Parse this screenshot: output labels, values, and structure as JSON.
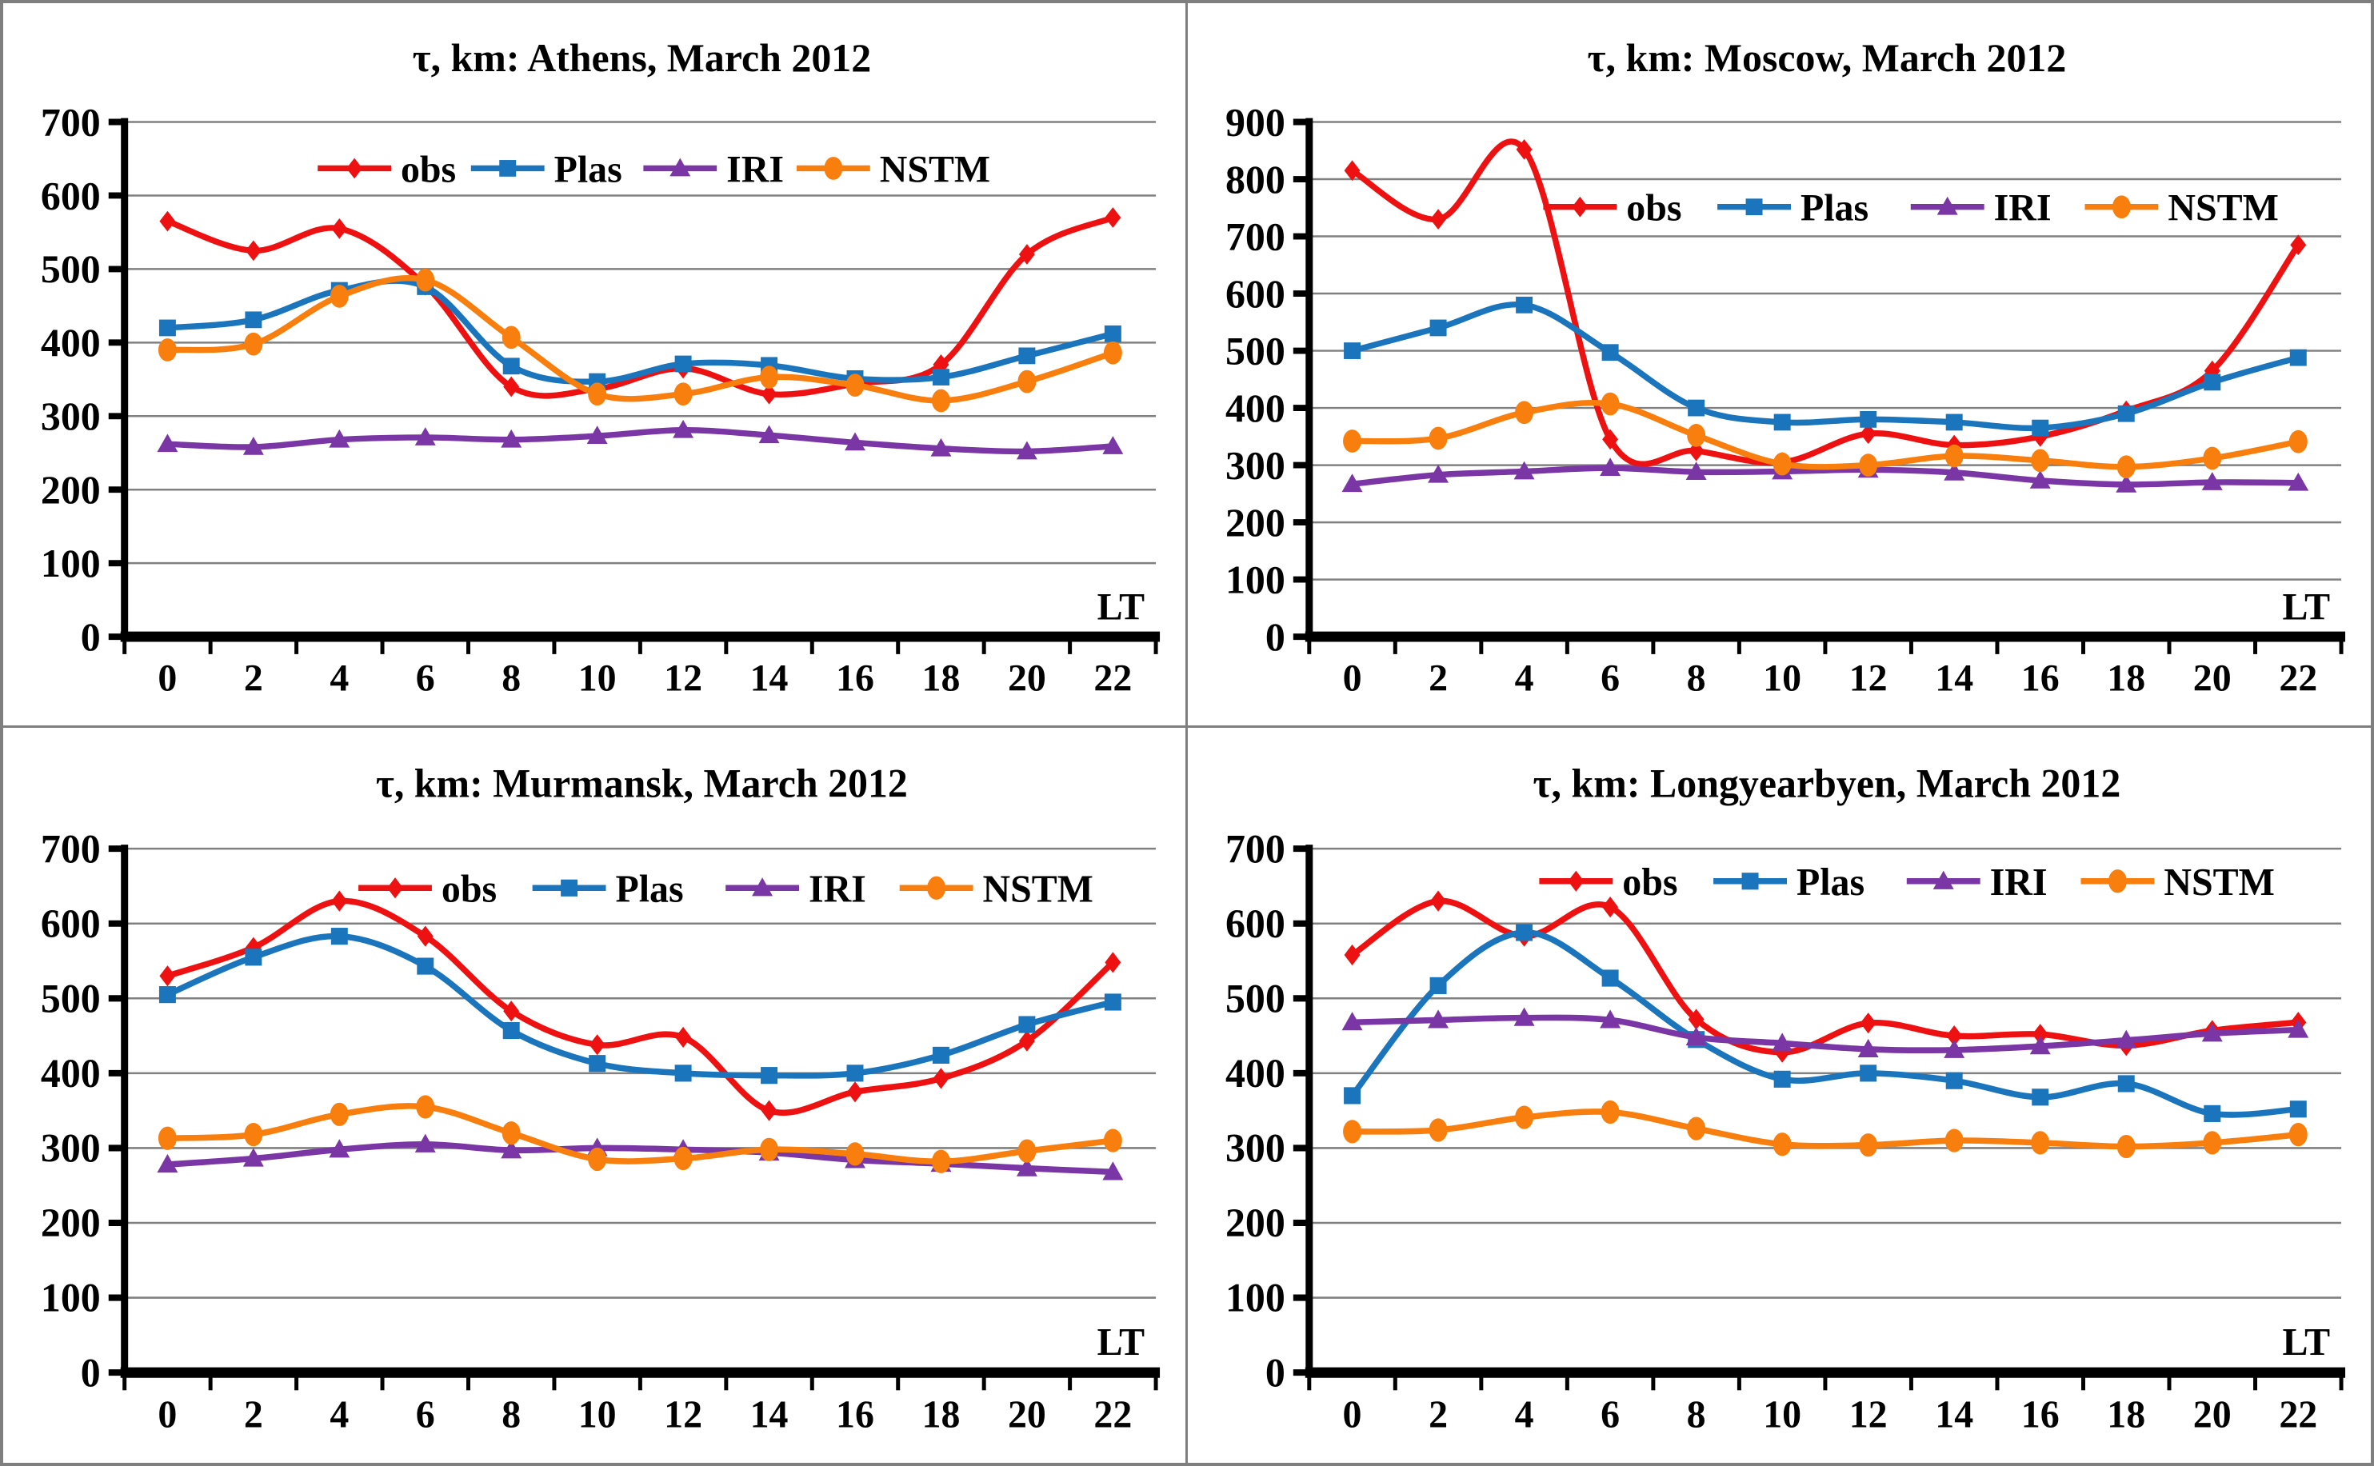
{
  "page": {
    "background": "#ffffff",
    "frame_color": "#7f7f7f",
    "grid_color": "#808080",
    "axis_color": "#000000"
  },
  "chart_data": [
    {
      "type": "line",
      "title": "τ, km: Athens, March 2012",
      "xlabel": "LT",
      "ylabel": "",
      "x": [
        0,
        2,
        4,
        6,
        8,
        10,
        12,
        14,
        16,
        18,
        20,
        22
      ],
      "ylim": [
        0,
        700
      ],
      "ytick_step": 100,
      "grid": true,
      "legend_position": "inside-top-center",
      "legend_y_frac": 0.09,
      "legend_center_x": 815,
      "legend_item_gap": 10,
      "series": [
        {
          "name": "obs",
          "color": "#ee1111",
          "marker": "diamond",
          "values": [
            565,
            525,
            555,
            478,
            340,
            337,
            365,
            330,
            344,
            370,
            520,
            570
          ]
        },
        {
          "name": "Plas",
          "color": "#1b75bc",
          "marker": "square",
          "values": [
            420,
            431,
            471,
            476,
            368,
            347,
            371,
            369,
            351,
            353,
            382,
            412
          ]
        },
        {
          "name": "IRI",
          "color": "#7a36a4",
          "marker": "triangle",
          "values": [
            262,
            258,
            268,
            271,
            268,
            273,
            281,
            274,
            264,
            256,
            252,
            259
          ]
        },
        {
          "name": "NSTM",
          "color": "#f87e0e",
          "marker": "circle",
          "values": [
            390,
            398,
            463,
            485,
            407,
            330,
            330,
            353,
            342,
            321,
            347,
            386
          ]
        }
      ]
    },
    {
      "type": "line",
      "title": "τ, km: Moscow, March 2012",
      "xlabel": "LT",
      "ylabel": "",
      "x": [
        0,
        2,
        4,
        6,
        8,
        10,
        12,
        14,
        16,
        18,
        20,
        22
      ],
      "ylim": [
        0,
        900
      ],
      "ytick_step": 100,
      "grid": true,
      "legend_position": "inside-top-center",
      "legend_y_frac": 0.165,
      "legend_center_x": 905,
      "legend_item_gap": 36,
      "series": [
        {
          "name": "obs",
          "color": "#ee1111",
          "marker": "diamond",
          "values": [
            815,
            730,
            852,
            345,
            325,
            305,
            355,
            335,
            350,
            395,
            465,
            685
          ]
        },
        {
          "name": "Plas",
          "color": "#1b75bc",
          "marker": "square",
          "values": [
            500,
            540,
            580,
            497,
            400,
            375,
            380,
            375,
            365,
            390,
            445,
            488
          ]
        },
        {
          "name": "IRI",
          "color": "#7a36a4",
          "marker": "triangle",
          "values": [
            267,
            283,
            289,
            295,
            288,
            289,
            292,
            287,
            273,
            266,
            270,
            269
          ]
        },
        {
          "name": "NSTM",
          "color": "#f87e0e",
          "marker": "circle",
          "values": [
            342,
            347,
            392,
            407,
            352,
            302,
            300,
            316,
            308,
            297,
            312,
            341
          ]
        }
      ]
    },
    {
      "type": "line",
      "title": "τ, km: Murmansk, March 2012",
      "xlabel": "LT",
      "ylabel": "",
      "x": [
        0,
        2,
        4,
        6,
        8,
        10,
        12,
        14,
        16,
        18,
        20,
        22
      ],
      "ylim": [
        0,
        700
      ],
      "ytick_step": 100,
      "grid": true,
      "legend_position": "inside-top-center",
      "legend_y_frac": 0.075,
      "legend_center_x": 905,
      "legend_item_gap": 36,
      "series": [
        {
          "name": "obs",
          "color": "#ee1111",
          "marker": "diamond",
          "values": [
            530,
            568,
            630,
            583,
            483,
            438,
            448,
            350,
            375,
            393,
            443,
            548
          ]
        },
        {
          "name": "Plas",
          "color": "#1b75bc",
          "marker": "square",
          "values": [
            505,
            555,
            583,
            543,
            457,
            413,
            400,
            397,
            400,
            424,
            465,
            495
          ]
        },
        {
          "name": "IRI",
          "color": "#7a36a4",
          "marker": "triangle",
          "values": [
            278,
            286,
            298,
            305,
            297,
            300,
            298,
            294,
            284,
            279,
            273,
            268
          ]
        },
        {
          "name": "NSTM",
          "color": "#f87e0e",
          "marker": "circle",
          "values": [
            313,
            318,
            345,
            355,
            320,
            285,
            286,
            298,
            292,
            282,
            296,
            310
          ]
        }
      ]
    },
    {
      "type": "line",
      "title": "τ, km: Longyearbyen, March 2012",
      "xlabel": "LT",
      "ylabel": "",
      "x": [
        0,
        2,
        4,
        6,
        8,
        10,
        12,
        14,
        16,
        18,
        20,
        22
      ],
      "ylim": [
        0,
        700
      ],
      "ytick_step": 100,
      "grid": true,
      "legend_position": "inside-top-center",
      "legend_y_frac": 0.062,
      "legend_center_x": 900,
      "legend_item_gap": 36,
      "series": [
        {
          "name": "obs",
          "color": "#ee1111",
          "marker": "diamond",
          "values": [
            558,
            630,
            583,
            622,
            472,
            428,
            467,
            450,
            452,
            437,
            457,
            468
          ]
        },
        {
          "name": "Plas",
          "color": "#1b75bc",
          "marker": "square",
          "values": [
            370,
            517,
            588,
            527,
            445,
            392,
            400,
            390,
            368,
            386,
            346,
            352
          ]
        },
        {
          "name": "IRI",
          "color": "#7a36a4",
          "marker": "triangle",
          "values": [
            468,
            471,
            474,
            471,
            448,
            440,
            432,
            431,
            436,
            444,
            453,
            458
          ]
        },
        {
          "name": "NSTM",
          "color": "#f87e0e",
          "marker": "circle",
          "values": [
            322,
            324,
            341,
            348,
            326,
            305,
            304,
            310,
            307,
            302,
            307,
            318
          ]
        }
      ]
    }
  ]
}
